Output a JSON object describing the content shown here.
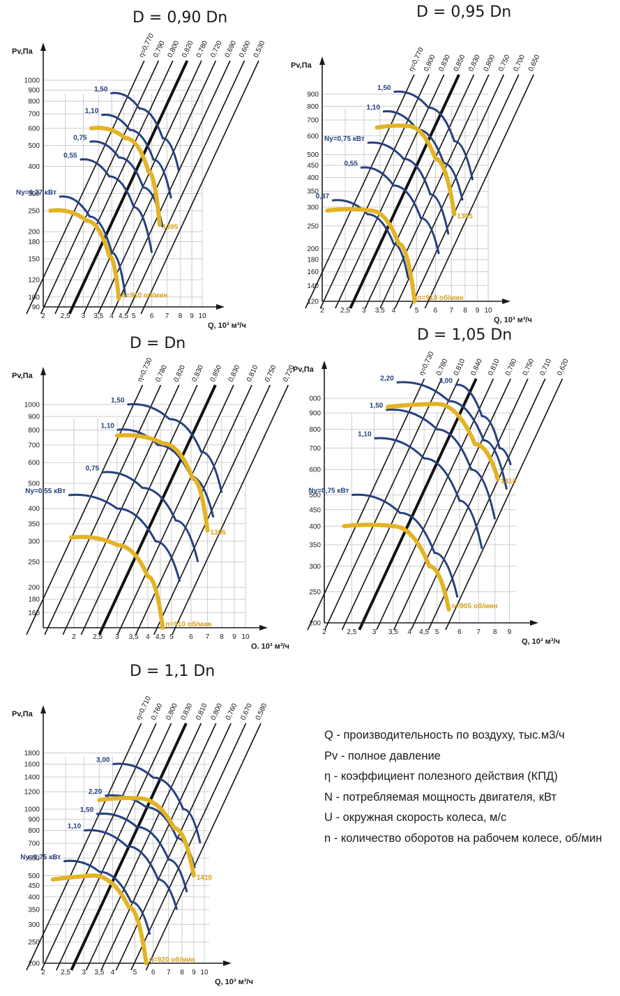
{
  "colors": {
    "grid": "#cccccc",
    "axis": "#1a1a1a",
    "eta": "#111111",
    "power": "#24407f",
    "speed": "#e3b325",
    "speedLabel": "#d6a01a"
  },
  "legend": [
    "Q - производительность по воздуху, тыс.м3/ч",
    "Pv - полное давление",
    "η - коэффициент полезного действия (КПД)",
    "N - потребляемая мощность двигателя, кВт",
    "U - окружная скорость колеса, м/с",
    "n - количество оборотов на рабочем колесе, об/мин"
  ],
  "chart_data": [
    {
      "type": "line",
      "title": "D = 0,90 Dn",
      "xlabel": "Q, 10³ м³/ч",
      "ylabel": "Pv,Па",
      "xticks": [
        "2",
        "2,5",
        "3",
        "3,5",
        "4",
        "4,5",
        "5",
        "6",
        "7",
        "8",
        "9",
        "10"
      ],
      "yticks": [
        "90",
        "100",
        "120",
        "150",
        "180",
        "200",
        "250",
        "300",
        "400",
        "500",
        "600",
        "700",
        "800",
        "900",
        "1000"
      ],
      "xlim": [
        2,
        10
      ],
      "ylim": [
        90,
        1000
      ],
      "eta": [
        "η=0,770",
        "0,790",
        "0,800",
        "0,820",
        "0,780",
        "0,720",
        "0,690",
        "0,600",
        "0,530"
      ],
      "power": [
        {
          "label": "Ny=0,37 кВт",
          "points": [
            [
              2.35,
              290
            ],
            [
              3.2,
              235
            ],
            [
              4.0,
              160
            ],
            [
              4.6,
              100
            ]
          ]
        },
        {
          "label": "0,55",
          "points": [
            [
              2.9,
              430
            ],
            [
              3.9,
              360
            ],
            [
              5.0,
              260
            ],
            [
              6.0,
              160
            ]
          ]
        },
        {
          "label": "0,75",
          "points": [
            [
              3.2,
              520
            ],
            [
              4.3,
              440
            ],
            [
              5.5,
              320
            ],
            [
              6.7,
              210
            ]
          ]
        },
        {
          "label": "1,10",
          "points": [
            [
              3.6,
              690
            ],
            [
              4.8,
              590
            ],
            [
              6.1,
              430
            ],
            [
              7.3,
              285
            ]
          ]
        },
        {
          "label": "1,50",
          "points": [
            [
              3.95,
              870
            ],
            [
              5.3,
              740
            ],
            [
              6.7,
              540
            ],
            [
              7.9,
              380
            ]
          ]
        }
      ],
      "speed": [
        {
          "label": "n=910 об/мин",
          "points": [
            [
              2.15,
              250
            ],
            [
              3.1,
              225
            ],
            [
              3.9,
              155
            ],
            [
              4.3,
              98
            ]
          ]
        },
        {
          "label": "1395",
          "points": [
            [
              3.25,
              600
            ],
            [
              4.6,
              540
            ],
            [
              5.8,
              380
            ],
            [
              6.5,
              215
            ]
          ]
        }
      ]
    },
    {
      "type": "line",
      "title": "D = 0,95 Dn",
      "xlabel": "Q, 10³ м³/ч",
      "ylabel": "Pv,Па",
      "xticks": [
        "2",
        "2,5",
        "3",
        "3,5",
        "4",
        "5",
        "6",
        "7",
        "8",
        "9",
        "10"
      ],
      "yticks": [
        "120",
        "140",
        "160",
        "180",
        "200",
        "250",
        "300",
        "350",
        "400",
        "450",
        "500",
        "600",
        "700",
        "800",
        "900"
      ],
      "xlim": [
        2,
        10
      ],
      "ylim": [
        120,
        900
      ],
      "eta": [
        "η=0,770",
        "0,800",
        "0,830",
        "0,850",
        "0,830",
        "0,800",
        "0,750",
        "0,700",
        "0,650"
      ],
      "power": [
        {
          "label": "0,37",
          "points": [
            [
              2.2,
              320
            ],
            [
              3.1,
              280
            ],
            [
              4.0,
              210
            ],
            [
              4.6,
              150
            ]
          ]
        },
        {
          "label": "0,55",
          "points": [
            [
              2.9,
              440
            ],
            [
              4.0,
              370
            ],
            [
              5.2,
              270
            ],
            [
              6.2,
              190
            ]
          ]
        },
        {
          "label": "Ny=0,75 кВт",
          "points": [
            [
              3.1,
              560
            ],
            [
              4.4,
              480
            ],
            [
              5.7,
              340
            ],
            [
              6.8,
              230
            ]
          ]
        },
        {
          "label": "1,10",
          "points": [
            [
              3.6,
              760
            ],
            [
              5.0,
              640
            ],
            [
              6.5,
              460
            ],
            [
              7.8,
              320
            ]
          ]
        },
        {
          "label": "1,50",
          "points": [
            [
              4.0,
              920
            ],
            [
              5.6,
              790
            ],
            [
              7.2,
              570
            ],
            [
              8.6,
              390
            ]
          ]
        }
      ],
      "speed": [
        {
          "label": "n=910 об/мин",
          "points": [
            [
              2.1,
              290
            ],
            [
              3.2,
              290
            ],
            [
              4.2,
              210
            ],
            [
              4.9,
              120
            ]
          ]
        },
        {
          "label": "1395",
          "points": [
            [
              3.4,
              650
            ],
            [
              4.6,
              660
            ],
            [
              6.0,
              480
            ],
            [
              7.2,
              280
            ]
          ]
        }
      ]
    },
    {
      "type": "line",
      "title": "D = Dn",
      "xlabel": "Q, 10³ м³/ч",
      "ylabel": "Pv,Па",
      "xticks": [
        "2",
        "2,5",
        "3",
        "3,5",
        "4",
        "4,5",
        "5",
        "6",
        "7",
        "8",
        "9",
        "10"
      ],
      "yticks": [
        "160",
        "180",
        "200",
        "250",
        "300",
        "350",
        "400",
        "500",
        "600",
        "700",
        "800",
        "900",
        "1000"
      ],
      "xlim": [
        1.5,
        10
      ],
      "ylim": [
        140,
        1000
      ],
      "eta": [
        "η=0,730",
        "0,780",
        "0,820",
        "0,830",
        "0,850",
        "0,830",
        "0,810",
        "0,750",
        "0,720"
      ],
      "power": [
        {
          "label": "Ny=0,55 кВт",
          "points": [
            [
              1.9,
              450
            ],
            [
              3.0,
              400
            ],
            [
              4.3,
              300
            ],
            [
              5.4,
              210
            ]
          ]
        },
        {
          "label": "0,75",
          "points": [
            [
              2.6,
              550
            ],
            [
              3.8,
              480
            ],
            [
              5.2,
              360
            ],
            [
              6.4,
              250
            ]
          ]
        },
        {
          "label": "1,10",
          "points": [
            [
              3.0,
              800
            ],
            [
              4.4,
              700
            ],
            [
              6.0,
              530
            ],
            [
              7.4,
              370
            ]
          ]
        },
        {
          "label": "1,50",
          "points": [
            [
              3.3,
              1000
            ],
            [
              4.9,
              880
            ],
            [
              6.6,
              660
            ],
            [
              8.0,
              460
            ]
          ]
        }
      ],
      "speed": [
        {
          "label": "n=910 об/мин",
          "points": [
            [
              1.95,
              310
            ],
            [
              3.0,
              290
            ],
            [
              4.0,
              220
            ],
            [
              4.6,
              140
            ]
          ]
        },
        {
          "label": "1395",
          "points": [
            [
              3.0,
              760
            ],
            [
              4.6,
              710
            ],
            [
              6.1,
              520
            ],
            [
              7.0,
              330
            ]
          ]
        }
      ]
    },
    {
      "type": "line",
      "title": "D = 1,05 Dn",
      "xlabel": "Q, 10³ м³/ч",
      "ylabel": "Pv,Па",
      "xticks": [
        "2",
        "2,5",
        "3",
        "3,5",
        "4",
        "4,5",
        "5",
        "6",
        "7",
        "8",
        "9"
      ],
      "yticks": [
        "200",
        "250",
        "300",
        "350",
        "400",
        "450",
        "500",
        "600",
        "700",
        "800",
        "900",
        "000"
      ],
      "xlim": [
        2,
        9.5
      ],
      "ylim": [
        200,
        1000
      ],
      "eta": [
        "η=0,730",
        "0,780",
        "0,810",
        "0,840",
        "0,810",
        "0,780",
        "0,750",
        "0,710",
        "0,620"
      ],
      "power": [
        {
          "label": "Ny=0,75 кВт",
          "points": [
            [
              2.5,
              500
            ],
            [
              3.7,
              440
            ],
            [
              4.9,
              330
            ],
            [
              5.9,
              240
            ]
          ]
        },
        {
          "label": "1,10",
          "points": [
            [
              3.0,
              750
            ],
            [
              4.5,
              650
            ],
            [
              6.0,
              480
            ],
            [
              7.2,
              340
            ]
          ]
        },
        {
          "label": "1,50",
          "points": [
            [
              3.3,
              920
            ],
            [
              5.0,
              800
            ],
            [
              6.6,
              600
            ],
            [
              8.0,
              420
            ]
          ]
        },
        {
          "label": "2,20",
          "points": [
            [
              3.6,
              1120
            ],
            [
              5.5,
              980
            ],
            [
              7.3,
              740
            ],
            [
              8.8,
              520
            ]
          ]
        },
        {
          "label": "3,00",
          "points": [
            [
              5.8,
              1100
            ],
            [
              7.2,
              880
            ],
            [
              8.3,
              700
            ],
            [
              9.1,
              620
            ]
          ]
        }
      ],
      "speed": [
        {
          "label": "n=905 об/мин",
          "points": [
            [
              2.35,
              400
            ],
            [
              3.5,
              400
            ],
            [
              4.7,
              300
            ],
            [
              5.5,
              220
            ]
          ]
        },
        {
          "label": "1410",
          "points": [
            [
              3.35,
              940
            ],
            [
              5.0,
              960
            ],
            [
              6.8,
              720
            ],
            [
              8.2,
              560
            ]
          ]
        }
      ]
    },
    {
      "type": "line",
      "title": "D = 1,1 Dn",
      "xlabel": "Q, 10³ м³/ч",
      "ylabel": "Pv,Па",
      "xticks": [
        "2",
        "2,5",
        "3",
        "3,5",
        "4",
        "5",
        "6",
        "7",
        "8",
        "9",
        "10"
      ],
      "yticks": [
        "200",
        "250",
        "300",
        "350",
        "400",
        "450",
        "500",
        "600",
        "700",
        "800",
        "900",
        "1000",
        "1200",
        "1400",
        "1600",
        "1800"
      ],
      "xlim": [
        2,
        10.5
      ],
      "ylim": [
        200,
        2000
      ],
      "eta": [
        "η=0,710",
        "0,760",
        "0,800",
        "0,830",
        "0,810",
        "0,800",
        "0,760",
        "0,670",
        "0,580"
      ],
      "power": [
        {
          "label": "Ny=0,75 кВт",
          "points": [
            [
              2.45,
              580
            ],
            [
              3.5,
              520
            ],
            [
              4.8,
              380
            ],
            [
              5.8,
              270
            ]
          ]
        },
        {
          "label": "1,10",
          "points": [
            [
              3.0,
              800
            ],
            [
              4.6,
              680
            ],
            [
              6.3,
              480
            ],
            [
              7.6,
              350
            ]
          ]
        },
        {
          "label": "1,50",
          "points": [
            [
              3.4,
              950
            ],
            [
              5.1,
              830
            ],
            [
              7.0,
              590
            ],
            [
              8.4,
              420
            ]
          ]
        },
        {
          "label": "2,20",
          "points": [
            [
              3.7,
              1150
            ],
            [
              5.6,
              1020
            ],
            [
              7.6,
              740
            ],
            [
              9.1,
              540
            ]
          ]
        },
        {
          "label": "3,00",
          "points": [
            [
              4.0,
              1600
            ],
            [
              6.0,
              1390
            ],
            [
              8.1,
              1000
            ],
            [
              9.6,
              700
            ]
          ]
        }
      ],
      "speed": [
        {
          "label": "n=920 об/мин",
          "points": [
            [
              2.2,
              480
            ],
            [
              3.3,
              500
            ],
            [
              4.7,
              360
            ],
            [
              5.6,
              200
            ]
          ]
        },
        {
          "label": "1410",
          "points": [
            [
              3.5,
              1100
            ],
            [
              5.2,
              1120
            ],
            [
              7.4,
              820
            ],
            [
              9.0,
              500
            ]
          ]
        }
      ]
    }
  ]
}
